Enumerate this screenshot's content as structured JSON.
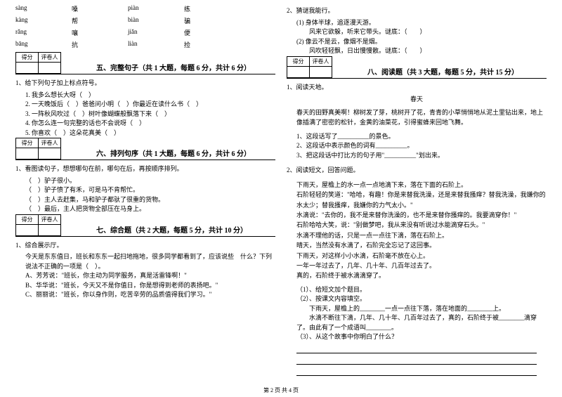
{
  "pinyin": {
    "rows": [
      {
        "p1": "sàng",
        "c1": "嗓",
        "p2": "piàn",
        "c2": "练"
      },
      {
        "p1": "kàng",
        "c1": "帮",
        "p2": "biàn",
        "c2": "骗"
      },
      {
        "p1": "rǎng",
        "c1": "嚷",
        "p2": "jiǎn",
        "c2": "便"
      },
      {
        "p1": "bāng",
        "c1": "抗",
        "p2": "liàn",
        "c2": "捡"
      }
    ]
  },
  "scoreLabels": {
    "l1": "得分",
    "l2": "评卷人"
  },
  "s5": {
    "title": "五、完整句子（共 1 大题，每题 6 分，共计 6 分）",
    "q": "1、给下列句子加上标点符号。",
    "subs": [
      "1. 我多么想长大呀（　）",
      "2. 一天晚饭后（　）爸爸问小明（　）你最近在读什么书（　）",
      "3. 一阵秋风吹过（　）树叶像蝴蝶般飘落下来（　）",
      "4. 你怎么连一句完整的话也不会说呀（　）",
      "5. 你喜欢（　）这朵花真美（　）"
    ]
  },
  "s6": {
    "title": "六、排列句序（共 1 大题，每题 6 分，共计 6 分）",
    "q": "1、看图读句子，想想哪句在前，哪句在后，再按顺序排列。",
    "subs": [
      "（　）驴子很小。",
      "（　）驴子愤了有禾，可是马不肯帮忙。",
      "（　）主人去赶集，马和驴子都驮了很重的货物。",
      "（　）最后，主人把货物全部压在马身上。"
    ]
  },
  "s7": {
    "title": "七、综合题（共 2 大题，每题 5 分，共计 10 分）",
    "q": "1、综合展示厅。",
    "intro": "今天是东东值日，班长和东东一起扫地拖地，很多同学都看到了，应该说些　什么？下列说法不正确的一项是（　）。",
    "opts": [
      "A、芳芳说：\"班长，你主动为同学服务，真是活雷锋啊！\"",
      "B、华华说：\"班长，今天又不是你值日，你是想得到老师的表扬吧。\"",
      "C、丽丽说：\"班长，你以身作则，吃苦辛劳的品质值得我们学习。\""
    ]
  },
  "s7b": {
    "q": "2、猜谜我能行。",
    "subs": [
      "(1) 身体半球，追逐漫天游。",
      "　　风来它欲躲，听来它带头。谜底：（　　）",
      "(2) 像云不是云，像烟不是烟。",
      "　　风吹轻轻飘，日出慢慢散。谜底：（　　）"
    ]
  },
  "s8": {
    "title": "八、阅读题（共 3 大题，每题 5 分，共计 15 分）",
    "q1": "1、阅读天地。",
    "r1title": "春天",
    "r1": "春天的田野真美啊！柳树发了芽，桃树开了花，青青的小草悄悄地从泥土里钻出来，地上像插满了密密的松针，金黄的油菜花，引得蜜蜂来回地飞舞。",
    "r1q": [
      "1、这段话写了__________的景色。",
      "2、这段话中表示颜色的词有__________。",
      "3、把这段话中打比方的句子用\"__________\"划出来。"
    ],
    "q2": "2、阅读短文，回答问题。",
    "r2": [
      "下雨天，屋檐上的水一点一点地滴下来，落在下面的石阶上。",
      "石阶轻轻的笑道：\"哈哈，有趣！你是来替我洗澡，还是来替我搔痒？替我洗澡，我嫌你的水太少；替我搔痒，我嫌你的力气太小。\"",
      "水滴说：\"去你的，我不是来替你洗澡的，也不是来替你搔痒的。我要滴穿你！\"",
      "石阶哈哈大笑，说：\"别做梦吧，我从来没有听说过水能滴穿石头。\"",
      "水滴不理他的话，只是一点一点往下滴，落在石阶上。",
      "晴天，当然没有水滴了，石阶完全忘记了这回事。",
      "下雨天，对这样小小水滴，石阶毫不放在心上。",
      "一年一年过去了，几年、几十年、几百年过去了。",
      "真的，石阶终于被水滴滴穿了。"
    ],
    "r2q": [
      "（1）、给短文加个题目。",
      "（2）、按课文内容填空。",
      "　　下雨天，屋檐上的________一点一点往下落，落在地面的________上。",
      "　　水滴不断往下滴，几年、几十年、几百年过去了，真的，石阶终于被________滴穿了。由此有了一个成语叫________。",
      "（3）、从这个故事中你明白了什么？"
    ]
  },
  "footer": "第 2 页 共 4 页"
}
